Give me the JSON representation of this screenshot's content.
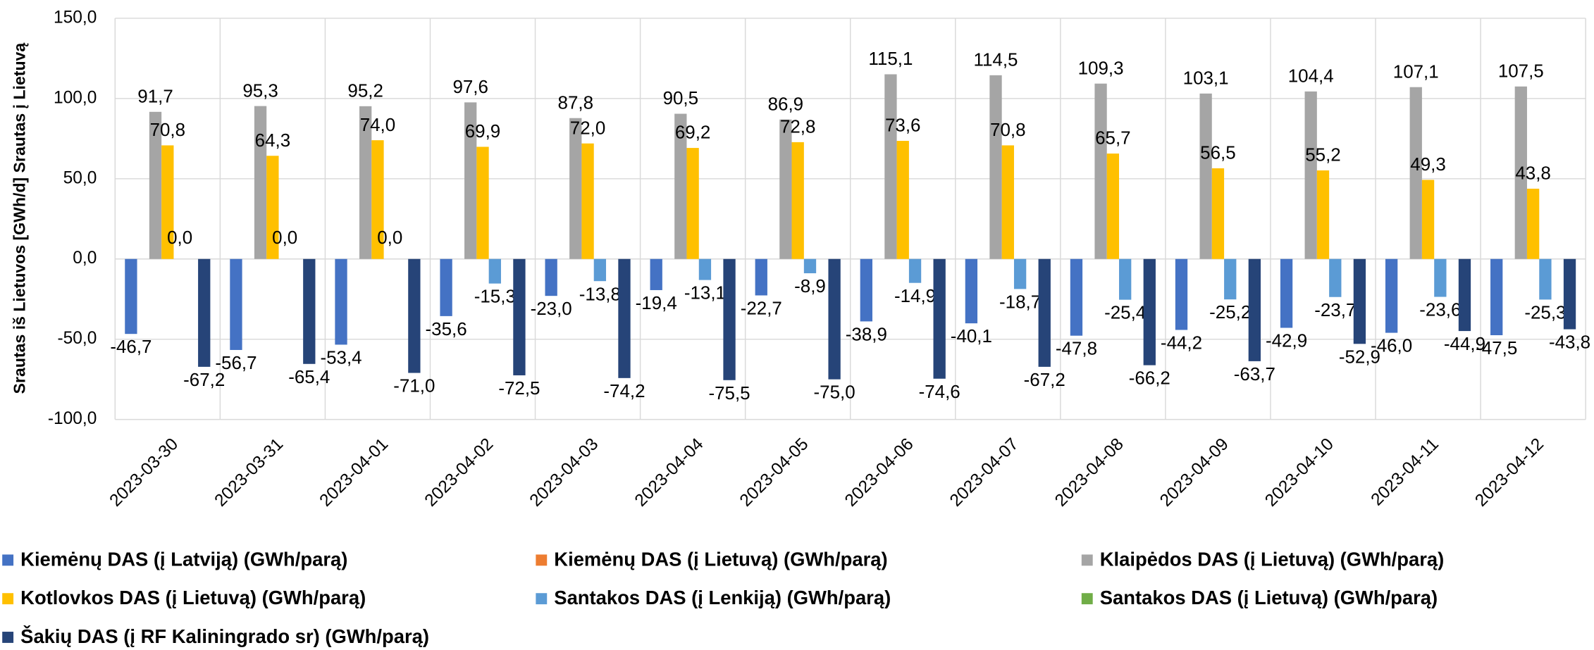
{
  "chart_data": {
    "type": "bar",
    "y_axis_label": "Srautas iš Lietuvos [GWh/d] Srautas į Lietuvą",
    "categories": [
      "2023-03-30",
      "2023-03-31",
      "2023-04-01",
      "2023-04-02",
      "2023-04-03",
      "2023-04-04",
      "2023-04-05",
      "2023-04-06",
      "2023-04-07",
      "2023-04-08",
      "2023-04-09",
      "2023-04-10",
      "2023-04-11",
      "2023-04-12"
    ],
    "series": [
      {
        "name": "Kiemėnų DAS (į Latviją) (GWh/parą)",
        "color": "#4472c4",
        "values": [
          -46.7,
          -56.7,
          -53.4,
          -35.6,
          -23.0,
          -19.4,
          -22.7,
          -38.9,
          -40.1,
          -47.8,
          -44.2,
          -42.9,
          -46.0,
          -47.5
        ],
        "value_labels": [
          "-46,7",
          "-56,7",
          "-53,4",
          "-35,6",
          "-23,0",
          "-19,4",
          "-22,7",
          "-38,9",
          "-40,1",
          "-47,8",
          "-44,2",
          "-42,9",
          "-46,0",
          "-47,5"
        ]
      },
      {
        "name": "Kiemėnų DAS (į Lietuvą) (GWh/parą)",
        "color": "#ed7d31",
        "values": [
          null,
          null,
          null,
          null,
          null,
          null,
          null,
          null,
          null,
          null,
          null,
          null,
          null,
          null
        ]
      },
      {
        "name": "Klaipėdos DAS (į Lietuvą) (GWh/parą)",
        "color": "#a5a5a5",
        "values": [
          91.7,
          95.3,
          95.2,
          97.6,
          87.8,
          90.5,
          86.9,
          115.1,
          114.5,
          109.3,
          103.1,
          104.4,
          107.1,
          107.5
        ],
        "value_labels": [
          "91,7",
          "95,3",
          "95,2",
          "97,6",
          "87,8",
          "90,5",
          "86,9",
          "115,1",
          "114,5",
          "109,3",
          "103,1",
          "104,4",
          "107,1",
          "107,5"
        ]
      },
      {
        "name": "Kotlovkos DAS (į Lietuvą) (GWh/parą)",
        "color": "#ffc000",
        "values": [
          70.8,
          64.3,
          74.0,
          69.9,
          72.0,
          69.2,
          72.8,
          73.6,
          70.8,
          65.7,
          56.5,
          55.2,
          49.3,
          43.8
        ],
        "value_labels": [
          "70,8",
          "64,3",
          "74,0",
          "69,9",
          "72,0",
          "69,2",
          "72,8",
          "73,6",
          "70,8",
          "65,7",
          "56,5",
          "55,2",
          "49,3",
          "43,8"
        ]
      },
      {
        "name": "Santakos DAS (į Lenkiją) (GWh/parą)",
        "color": "#5b9bd5",
        "values": [
          0.0,
          0.0,
          0.0,
          -15.3,
          -13.8,
          -13.1,
          -8.9,
          -14.9,
          -18.7,
          -25.4,
          -25.2,
          -23.7,
          -23.6,
          -25.3
        ],
        "value_labels": [
          "0,0",
          "0,0",
          "0,0",
          "-15,3",
          "-13,8",
          "-13,1",
          "-8,9",
          "-14,9",
          "-18,7",
          "-25,4",
          "-25,2",
          "-23,7",
          "-23,6",
          "-25,3"
        ]
      },
      {
        "name": "Santakos DAS (į Lietuvą) (GWh/parą)",
        "color": "#70ad47",
        "values": [
          null,
          null,
          null,
          null,
          null,
          null,
          null,
          null,
          null,
          null,
          null,
          null,
          null,
          null
        ]
      },
      {
        "name": "Šakių DAS (į RF Kaliningrado sr) (GWh/parą)",
        "color": "#264478",
        "values": [
          -67.2,
          -65.4,
          -71.0,
          -72.5,
          -74.2,
          -75.5,
          -75.0,
          -74.6,
          -67.2,
          -66.2,
          -63.7,
          -52.9,
          -44.9,
          -43.8
        ],
        "value_labels": [
          "-67,2",
          "-65,4",
          "-71,0",
          "-72,5",
          "-74,2",
          "-75,5",
          "-75,0",
          "-74,6",
          "-67,2",
          "-66,2",
          "-63,7",
          "-52,9",
          "-44,9",
          "-43,8"
        ]
      }
    ],
    "ylim": [
      -100,
      150
    ],
    "yticks": [
      {
        "value": -100,
        "label": "-100,0"
      },
      {
        "value": -50,
        "label": "-50,0"
      },
      {
        "value": 0,
        "label": "0,0"
      },
      {
        "value": 50,
        "label": "50,0"
      },
      {
        "value": 100,
        "label": "100,0"
      },
      {
        "value": 150,
        "label": "150,0"
      }
    ],
    "grid": true
  }
}
